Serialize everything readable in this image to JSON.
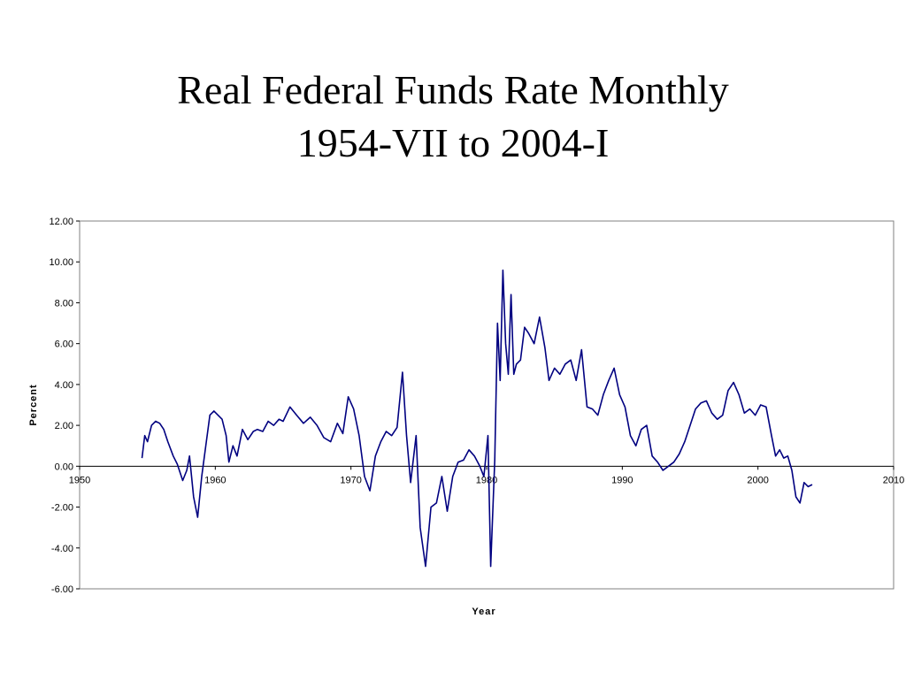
{
  "slide": {
    "title_line1": "Real Federal Funds Rate Monthly",
    "title_line2": "1954-VII to 2004-I"
  },
  "chart_data": {
    "type": "line",
    "title": "Real Federal Funds Rate Monthly 1954-VII to 2004-I",
    "xlabel": "Year",
    "ylabel": "Percent",
    "xlim": [
      1950,
      2010
    ],
    "ylim": [
      -6,
      12
    ],
    "xticks": [
      "1950",
      "1960",
      "1970",
      "1980",
      "1990",
      "2000",
      "2010"
    ],
    "yticks": [
      "12.00",
      "10.00",
      "8.00",
      "6.00",
      "4.00",
      "2.00",
      "0.00",
      "-2.00",
      "-4.00",
      "-6.00"
    ],
    "grid": false,
    "legend": "none",
    "line_color": "#000080",
    "series": [
      {
        "x": [
          1954.6,
          1954.8,
          1955.0,
          1955.3,
          1955.6,
          1955.9,
          1956.2,
          1956.5,
          1956.9,
          1957.2,
          1957.6,
          1957.9,
          1958.1,
          1958.4,
          1958.7,
          1959.0,
          1959.3,
          1959.6,
          1959.9,
          1960.2,
          1960.5,
          1960.8,
          1961.0,
          1961.3,
          1961.6,
          1962.0,
          1962.4,
          1962.8,
          1963.1,
          1963.5,
          1963.9,
          1964.3,
          1964.7,
          1965.0,
          1965.5,
          1966.0,
          1966.5,
          1967.0,
          1967.5,
          1968.0,
          1968.5,
          1969.0,
          1969.4,
          1969.8,
          1970.2,
          1970.6,
          1971.0,
          1971.4,
          1971.8,
          1972.2,
          1972.6,
          1973.0,
          1973.4,
          1973.8,
          1974.1,
          1974.4,
          1974.8,
          1975.1,
          1975.5,
          1975.9,
          1976.3,
          1976.7,
          1977.1,
          1977.5,
          1977.9,
          1978.3,
          1978.7,
          1979.1,
          1979.5,
          1979.8,
          1980.1,
          1980.3,
          1980.6,
          1980.8,
          1981.0,
          1981.2,
          1981.4,
          1981.6,
          1981.8,
          1982.0,
          1982.2,
          1982.5,
          1982.8,
          1983.1,
          1983.5,
          1983.9,
          1984.3,
          1984.6,
          1985.0,
          1985.4,
          1985.8,
          1986.2,
          1986.6,
          1987.0,
          1987.4,
          1987.8,
          1988.2,
          1988.6,
          1989.0,
          1989.4,
          1989.8,
          1990.2,
          1990.6,
          1991.0,
          1991.4,
          1991.8,
          1992.2,
          1992.6,
          1993.0,
          1993.4,
          1993.8,
          1994.2,
          1994.6,
          1995.0,
          1995.4,
          1995.8,
          1996.2,
          1996.6,
          1997.0,
          1997.4,
          1997.8,
          1998.2,
          1998.6,
          1999.0,
          1999.4,
          1999.8,
          2000.2,
          2000.6,
          2001.0,
          2001.3,
          2001.6,
          2001.9,
          2002.2,
          2002.5,
          2002.8,
          2003.1,
          2003.4,
          2003.7,
          2004.0
        ],
        "y": [
          0.4,
          1.5,
          1.2,
          2.0,
          2.2,
          2.1,
          1.8,
          1.2,
          0.5,
          0.1,
          -0.7,
          -0.2,
          0.5,
          -1.5,
          -2.5,
          -0.5,
          1.0,
          2.5,
          2.7,
          2.5,
          2.3,
          1.5,
          0.2,
          1.0,
          0.5,
          1.8,
          1.3,
          1.7,
          1.8,
          1.7,
          2.2,
          2.0,
          2.3,
          2.2,
          2.9,
          2.5,
          2.1,
          2.4,
          2.0,
          1.4,
          1.2,
          2.1,
          1.6,
          3.4,
          2.8,
          1.5,
          -0.5,
          -1.2,
          0.5,
          1.2,
          1.7,
          1.5,
          1.9,
          4.6,
          1.5,
          -0.8,
          1.5,
          -3.0,
          -4.9,
          -2.0,
          -1.8,
          -0.5,
          -2.2,
          -0.5,
          0.2,
          0.3,
          0.8,
          0.5,
          0.0,
          -0.5,
          1.5,
          -4.9,
          0.3,
          7.0,
          4.2,
          9.6,
          6.0,
          4.5,
          8.4,
          4.5,
          5.0,
          5.2,
          6.8,
          6.5,
          6.0,
          7.3,
          5.8,
          4.2,
          4.8,
          4.5,
          5.0,
          5.2,
          4.2,
          5.7,
          2.9,
          2.8,
          2.5,
          3.5,
          4.2,
          4.8,
          3.5,
          2.9,
          1.5,
          1.0,
          1.8,
          2.0,
          0.5,
          0.2,
          -0.2,
          0.0,
          0.2,
          0.6,
          1.2,
          2.0,
          2.8,
          3.1,
          3.2,
          2.6,
          2.3,
          2.5,
          3.7,
          4.1,
          3.5,
          2.6,
          2.8,
          2.5,
          3.0,
          2.9,
          1.5,
          0.5,
          0.8,
          0.4,
          0.5,
          -0.2,
          -1.5,
          -1.8,
          -0.8,
          -1.0,
          -0.9
        ]
      }
    ]
  }
}
